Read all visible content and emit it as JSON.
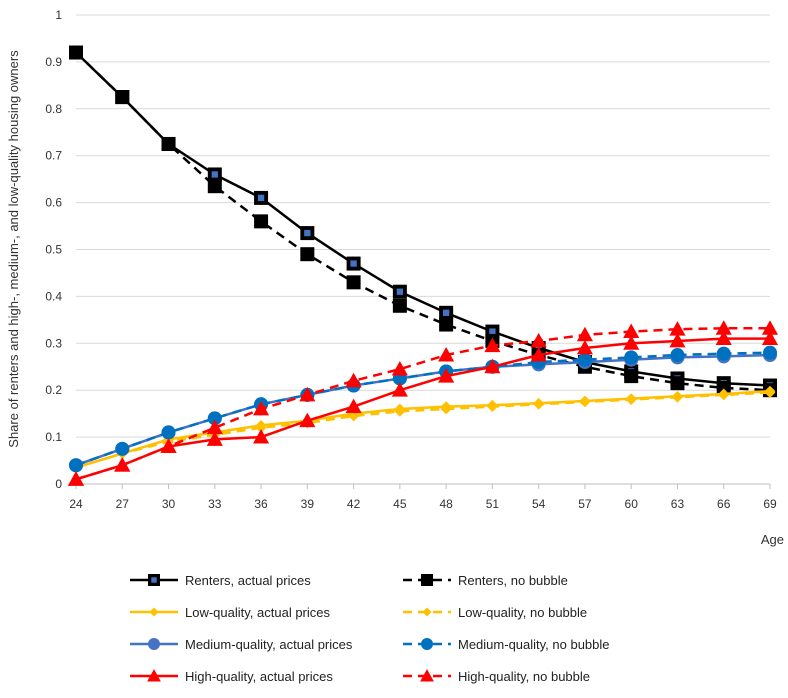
{
  "chart_data": {
    "type": "line",
    "xlabel": "Age",
    "ylabel": "Share of renters and high-, medium-, and low-quality housing owners",
    "x": [
      24,
      27,
      30,
      33,
      36,
      39,
      42,
      45,
      48,
      51,
      54,
      57,
      60,
      63,
      66,
      69
    ],
    "xlim": [
      24,
      69
    ],
    "ylim": [
      0,
      1
    ],
    "yticks": [
      0,
      0.1,
      0.2,
      0.3,
      0.4,
      0.5,
      0.6,
      0.7,
      0.8,
      0.9,
      1
    ],
    "xtick_labels": [
      "24",
      "27",
      "30",
      "33",
      "36",
      "39",
      "42",
      "45",
      "48",
      "51",
      "54",
      "57",
      "60",
      "63",
      "66",
      "69"
    ],
    "ytick_labels": [
      "0",
      "0.1",
      "0.2",
      "0.3",
      "0.4",
      "0.5",
      "0.6",
      "0.7",
      "0.8",
      "0.9",
      "1"
    ],
    "grid": "horizontal",
    "legend_position": "bottom",
    "series": [
      {
        "name": "Renters, actual prices",
        "color": "#000000",
        "dash": "solid",
        "marker": "square-hollow",
        "values": [
          0.92,
          0.825,
          0.725,
          0.66,
          0.61,
          0.535,
          0.47,
          0.41,
          0.365,
          0.325,
          0.29,
          0.26,
          0.24,
          0.225,
          0.215,
          0.21
        ]
      },
      {
        "name": "Renters,  no bubble",
        "color": "#000000",
        "dash": "dashed",
        "marker": "square",
        "values": [
          0.92,
          0.825,
          0.725,
          0.635,
          0.56,
          0.49,
          0.43,
          0.38,
          0.34,
          0.305,
          0.275,
          0.25,
          0.23,
          0.215,
          0.205,
          0.2
        ]
      },
      {
        "name": "Low-quality, actual prices",
        "color": "#ffc000",
        "dash": "solid",
        "marker": "diamond",
        "values": [
          0.035,
          0.065,
          0.095,
          0.11,
          0.125,
          0.135,
          0.15,
          0.16,
          0.165,
          0.168,
          0.172,
          0.177,
          0.182,
          0.187,
          0.192,
          0.198
        ]
      },
      {
        "name": "Low-quality, no bubble",
        "color": "#ffc000",
        "dash": "dashed",
        "marker": "diamond",
        "values": [
          0.035,
          0.065,
          0.09,
          0.105,
          0.12,
          0.13,
          0.145,
          0.155,
          0.16,
          0.165,
          0.17,
          0.175,
          0.18,
          0.185,
          0.19,
          0.195
        ]
      },
      {
        "name": "Medium-quality, actual prices",
        "color": "#4472c4",
        "dash": "solid",
        "marker": "circle",
        "values": [
          0.04,
          0.075,
          0.11,
          0.14,
          0.17,
          0.19,
          0.21,
          0.225,
          0.24,
          0.25,
          0.255,
          0.26,
          0.265,
          0.27,
          0.272,
          0.275
        ]
      },
      {
        "name": "Medium-quality, no bubble",
        "color": "#0070c0",
        "dash": "dashed",
        "marker": "circle",
        "values": [
          0.04,
          0.075,
          0.11,
          0.14,
          0.17,
          0.19,
          0.21,
          0.225,
          0.24,
          0.25,
          0.26,
          0.265,
          0.27,
          0.275,
          0.278,
          0.28
        ]
      },
      {
        "name": "High-quality, actual prices",
        "color": "#ff0000",
        "dash": "solid",
        "marker": "triangle",
        "values": [
          0.01,
          0.04,
          0.08,
          0.095,
          0.1,
          0.135,
          0.165,
          0.2,
          0.23,
          0.25,
          0.275,
          0.29,
          0.3,
          0.305,
          0.31,
          0.31
        ]
      },
      {
        "name": "High-quality, no bubble",
        "color": "#ff0000",
        "dash": "dashed",
        "marker": "triangle",
        "values": [
          0.01,
          0.04,
          0.08,
          0.12,
          0.16,
          0.19,
          0.22,
          0.245,
          0.275,
          0.295,
          0.305,
          0.318,
          0.325,
          0.33,
          0.332,
          0.332
        ]
      }
    ]
  }
}
